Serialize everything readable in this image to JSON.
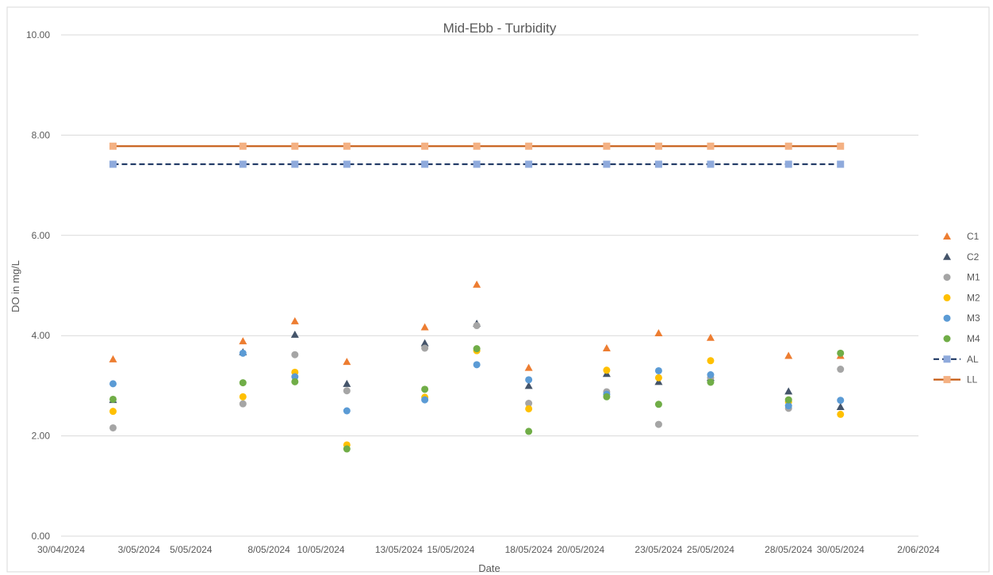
{
  "chart_data": {
    "type": "scatter",
    "title": "Mid-Ebb - Turbidity",
    "xlabel": "Date",
    "ylabel": "DO in mg/L",
    "ylim": [
      0,
      10
    ],
    "yticks": [
      "0.00",
      "2.00",
      "4.00",
      "6.00",
      "8.00",
      "10.00"
    ],
    "xlim": [
      "2024-04-30",
      "2024-06-02"
    ],
    "xticks": [
      {
        "date": "2024-04-30",
        "label": "30/04/2024"
      },
      {
        "date": "2024-05-03",
        "label": "3/05/2024"
      },
      {
        "date": "2024-05-05",
        "label": "5/05/2024"
      },
      {
        "date": "2024-05-08",
        "label": "8/05/2024"
      },
      {
        "date": "2024-05-10",
        "label": "10/05/2024"
      },
      {
        "date": "2024-05-13",
        "label": "13/05/2024"
      },
      {
        "date": "2024-05-15",
        "label": "15/05/2024"
      },
      {
        "date": "2024-05-18",
        "label": "18/05/2024"
      },
      {
        "date": "2024-05-20",
        "label": "20/05/2024"
      },
      {
        "date": "2024-05-23",
        "label": "23/05/2024"
      },
      {
        "date": "2024-05-25",
        "label": "25/05/2024"
      },
      {
        "date": "2024-05-28",
        "label": "28/05/2024"
      },
      {
        "date": "2024-05-30",
        "label": "30/05/2024"
      },
      {
        "date": "2024-06-02",
        "label": "2/06/2024"
      }
    ],
    "grid": true,
    "legend_position": "right",
    "x": [
      "2024-05-02",
      "2024-05-07",
      "2024-05-09",
      "2024-05-11",
      "2024-05-14",
      "2024-05-16",
      "2024-05-18",
      "2024-05-21",
      "2024-05-23",
      "2024-05-25",
      "2024-05-28",
      "2024-05-30"
    ],
    "series": [
      {
        "name": "C1",
        "marker": "triangle",
        "color": "#ed7d31",
        "values": [
          3.53,
          3.89,
          4.29,
          3.48,
          4.17,
          5.02,
          3.36,
          3.75,
          4.05,
          3.96,
          3.6,
          3.6
        ]
      },
      {
        "name": "C2",
        "marker": "triangle",
        "color": "#44546a",
        "values": [
          2.72,
          3.67,
          4.02,
          3.04,
          3.85,
          4.24,
          3.0,
          3.24,
          3.08,
          3.16,
          2.89,
          2.58
        ]
      },
      {
        "name": "M1",
        "marker": "circle",
        "color": "#a5a5a5",
        "values": [
          2.16,
          2.64,
          3.62,
          2.9,
          3.75,
          4.2,
          2.65,
          2.88,
          2.23,
          3.16,
          2.55,
          3.33
        ]
      },
      {
        "name": "M2",
        "marker": "circle",
        "color": "#ffc000",
        "values": [
          2.49,
          2.78,
          3.27,
          1.82,
          2.77,
          3.7,
          2.54,
          3.31,
          3.16,
          3.5,
          2.68,
          2.43
        ]
      },
      {
        "name": "M3",
        "marker": "circle",
        "color": "#5b9bd5",
        "values": [
          3.04,
          3.65,
          3.18,
          2.5,
          2.72,
          3.42,
          3.12,
          2.83,
          3.3,
          3.22,
          2.6,
          2.71
        ]
      },
      {
        "name": "M4",
        "marker": "circle",
        "color": "#70ad47",
        "values": [
          2.73,
          3.06,
          3.08,
          1.74,
          2.93,
          3.74,
          2.09,
          2.78,
          2.63,
          3.07,
          2.72,
          3.65
        ]
      },
      {
        "name": "AL",
        "marker": "square",
        "line": "dashed",
        "color": "#1f3864",
        "marker_color": "#8faadc",
        "values": [
          7.42,
          7.42,
          7.42,
          7.42,
          7.42,
          7.42,
          7.42,
          7.42,
          7.42,
          7.42,
          7.42,
          7.42
        ]
      },
      {
        "name": "LL",
        "marker": "square",
        "line": "solid",
        "color": "#c55a11",
        "marker_color": "#f4b183",
        "values": [
          7.78,
          7.78,
          7.78,
          7.78,
          7.78,
          7.78,
          7.78,
          7.78,
          7.78,
          7.78,
          7.78,
          7.78
        ]
      }
    ]
  }
}
